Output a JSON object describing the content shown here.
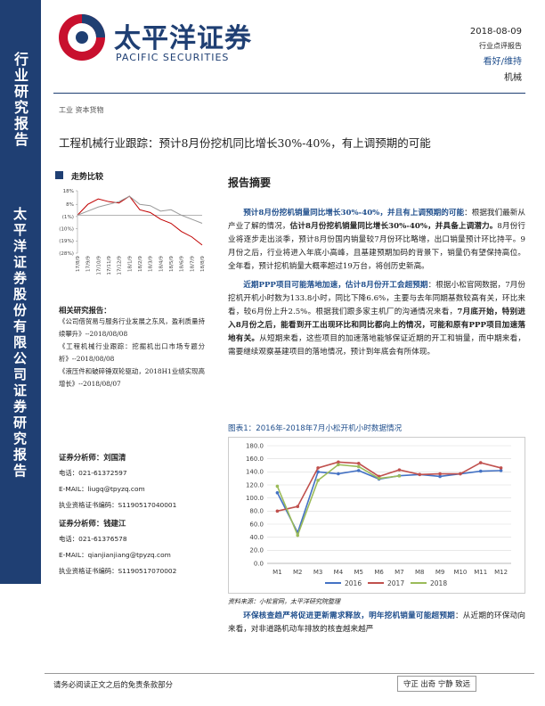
{
  "sidebar": {
    "top": "行业研究报告",
    "bottom": "太平洋证券股份有限公司证券研究报告"
  },
  "header": {
    "brand": "太平洋证券",
    "brand_en": "PACIFIC SECURITIES",
    "date": "2018-08-09",
    "report_type": "行业点评报告",
    "rating": "看好/维持",
    "industry": "机械",
    "sector": "工业 资本货物"
  },
  "title": "工程机械行业跟踪：预计8月份挖机同比增长30%-40%，有上调预期的可能",
  "chart_data": [
    {
      "type": "line",
      "title": "走势比较",
      "categories": [
        "17/8/9",
        "17/9/9",
        "17/10/9",
        "17/11/9",
        "17/12/9",
        "18/1/9",
        "18/2/9",
        "18/3/9",
        "18/4/9",
        "18/5/9",
        "18/6/9",
        "18/7/9",
        "18/8/9"
      ],
      "series": [
        {
          "color": "#c00000",
          "values": [
            0,
            8,
            12,
            10,
            9,
            14,
            4,
            2,
            -3,
            -6,
            -12,
            -16,
            -22
          ]
        },
        {
          "color": "#999999",
          "values": [
            0,
            3,
            6,
            8,
            10,
            14,
            8,
            7,
            3,
            4,
            0,
            -3,
            -6
          ]
        }
      ],
      "ylim": [
        -28,
        18
      ],
      "yticks": [
        {
          "value": 18,
          "label": "18%"
        },
        {
          "value": 8,
          "label": "8%"
        },
        {
          "value": -1,
          "label": "(1%)"
        },
        {
          "value": -10,
          "label": "(10%)"
        },
        {
          "value": -19,
          "label": "(19%)"
        },
        {
          "value": -28,
          "label": "(28%)"
        }
      ]
    },
    {
      "type": "line",
      "title": "图表1：2016年-2018年7月小松开机小时数据情况",
      "source": "资料来源：小松官网，太平洋研究院整理",
      "categories": [
        "M1",
        "M2",
        "M3",
        "M4",
        "M5",
        "M6",
        "M7",
        "M8",
        "M9",
        "M10",
        "M11",
        "M12"
      ],
      "series": [
        {
          "name": "2016",
          "color": "#4472c4",
          "values": [
            108,
            47,
            140,
            137,
            142,
            129,
            134,
            136,
            133,
            137,
            141,
            142
          ]
        },
        {
          "name": "2017",
          "color": "#c0504d",
          "values": [
            80,
            87,
            146,
            155,
            153,
            133,
            143,
            136,
            137,
            137,
            154,
            146
          ]
        },
        {
          "name": "2018",
          "color": "#9bbb59",
          "values": [
            118,
            43,
            127,
            151,
            148,
            130,
            133.8,
            null,
            null,
            null,
            null,
            null
          ]
        }
      ],
      "ylim": [
        0,
        180
      ],
      "yticks": [
        {
          "value": 0,
          "label": "0.0"
        },
        {
          "value": 20,
          "label": "20.0"
        },
        {
          "value": 40,
          "label": "40.0"
        },
        {
          "value": 60,
          "label": "60.0"
        },
        {
          "value": 80,
          "label": "80.0"
        },
        {
          "value": 100,
          "label": "100.0"
        },
        {
          "value": 120,
          "label": "120.0"
        },
        {
          "value": 140,
          "label": "140.0"
        },
        {
          "value": 160,
          "label": "160.0"
        },
        {
          "value": 180,
          "label": "180.0"
        }
      ],
      "legend": "bottom"
    }
  ],
  "related": {
    "heading": "相关研究报告：",
    "items": [
      "《公司借贸易与服务行业发展之东风，盈利质量持续攀升》--2018/08/08",
      "《工程机械行业跟踪：挖掘机出口市场专题分析》--2018/08/08",
      "《液压件和破碎锤双轮驱动，2018H1业绩实现高增长》--2018/08/07"
    ]
  },
  "analysts": [
    {
      "name": "证券分析师：刘国清",
      "phone": "电话：021-61372597",
      "email": "E-MAIL：liugq@tpyzq.com",
      "license": "执业资格证书编码：S1190517040001"
    },
    {
      "name": "证券分析师：钱建江",
      "phone": "电话：021-61376578",
      "email": "E-MAIL：qianjianjiang@tpyzq.com",
      "license": "执业资格证书编码：S1190517070002"
    }
  ],
  "summary": {
    "heading": "报告摘要",
    "paragraphs": [
      [
        {
          "text": "预计8月份挖机销量同比增长30%-40%，并且有上调预期的可能",
          "bold": true,
          "color": "#1f4e8c"
        },
        {
          "text": "：根据我们最新从产业了解的情况，"
        },
        {
          "text": "估计8月份挖机销量同比增长30%-40%，并具备上调潜力。",
          "bold": true
        },
        {
          "text": "8月份行业将逐步走出淡季，预计8月份国内销量较7月份环比略增，出口销量预计环比持平。9月份之后，行业将进入年底小高峰，且基建预期加码的背景下，销量仍有望保持高位。全年看，预计挖机销量大概率超过19万台，将创历史新高。"
        }
      ],
      [
        {
          "text": "近期PPP项目可能落地加速，估计8月份开工会超预期",
          "bold": true,
          "color": "#1f4e8c"
        },
        {
          "text": "：根据小松官网数据，7月份挖机开机小时数为133.8小时，同比下降6.6%，主要与去年同期基数较高有关，环比来看，较6月份上升2.5%。根据我们跟多家主机厂的沟通情况来看，"
        },
        {
          "text": "7月底开始，特别进入8月份之后，能看到开工出现环比和同比都向上的情况，可能和原有PPP项目加速落地有关。",
          "bold": true
        },
        {
          "text": "从短期来看，这些项目的加速落地能够保证近期的开工和销量，而中期来看，需要继续观察基建项目的落地情况，预计到年底会有所体现。"
        }
      ]
    ],
    "closing": [
      {
        "text": "环保核查趋严将促进更新需求释放，明年挖机销量可能超预期",
        "bold": true,
        "color": "#1f4e8c"
      },
      {
        "text": "：从近期的环保动向来看，对非道路机动车排放的核查越来越严"
      }
    ]
  },
  "footer": {
    "disclaimer": "请务必阅读正文之后的免责条款部分",
    "motto": "守正 出奇 宁静 致远"
  }
}
